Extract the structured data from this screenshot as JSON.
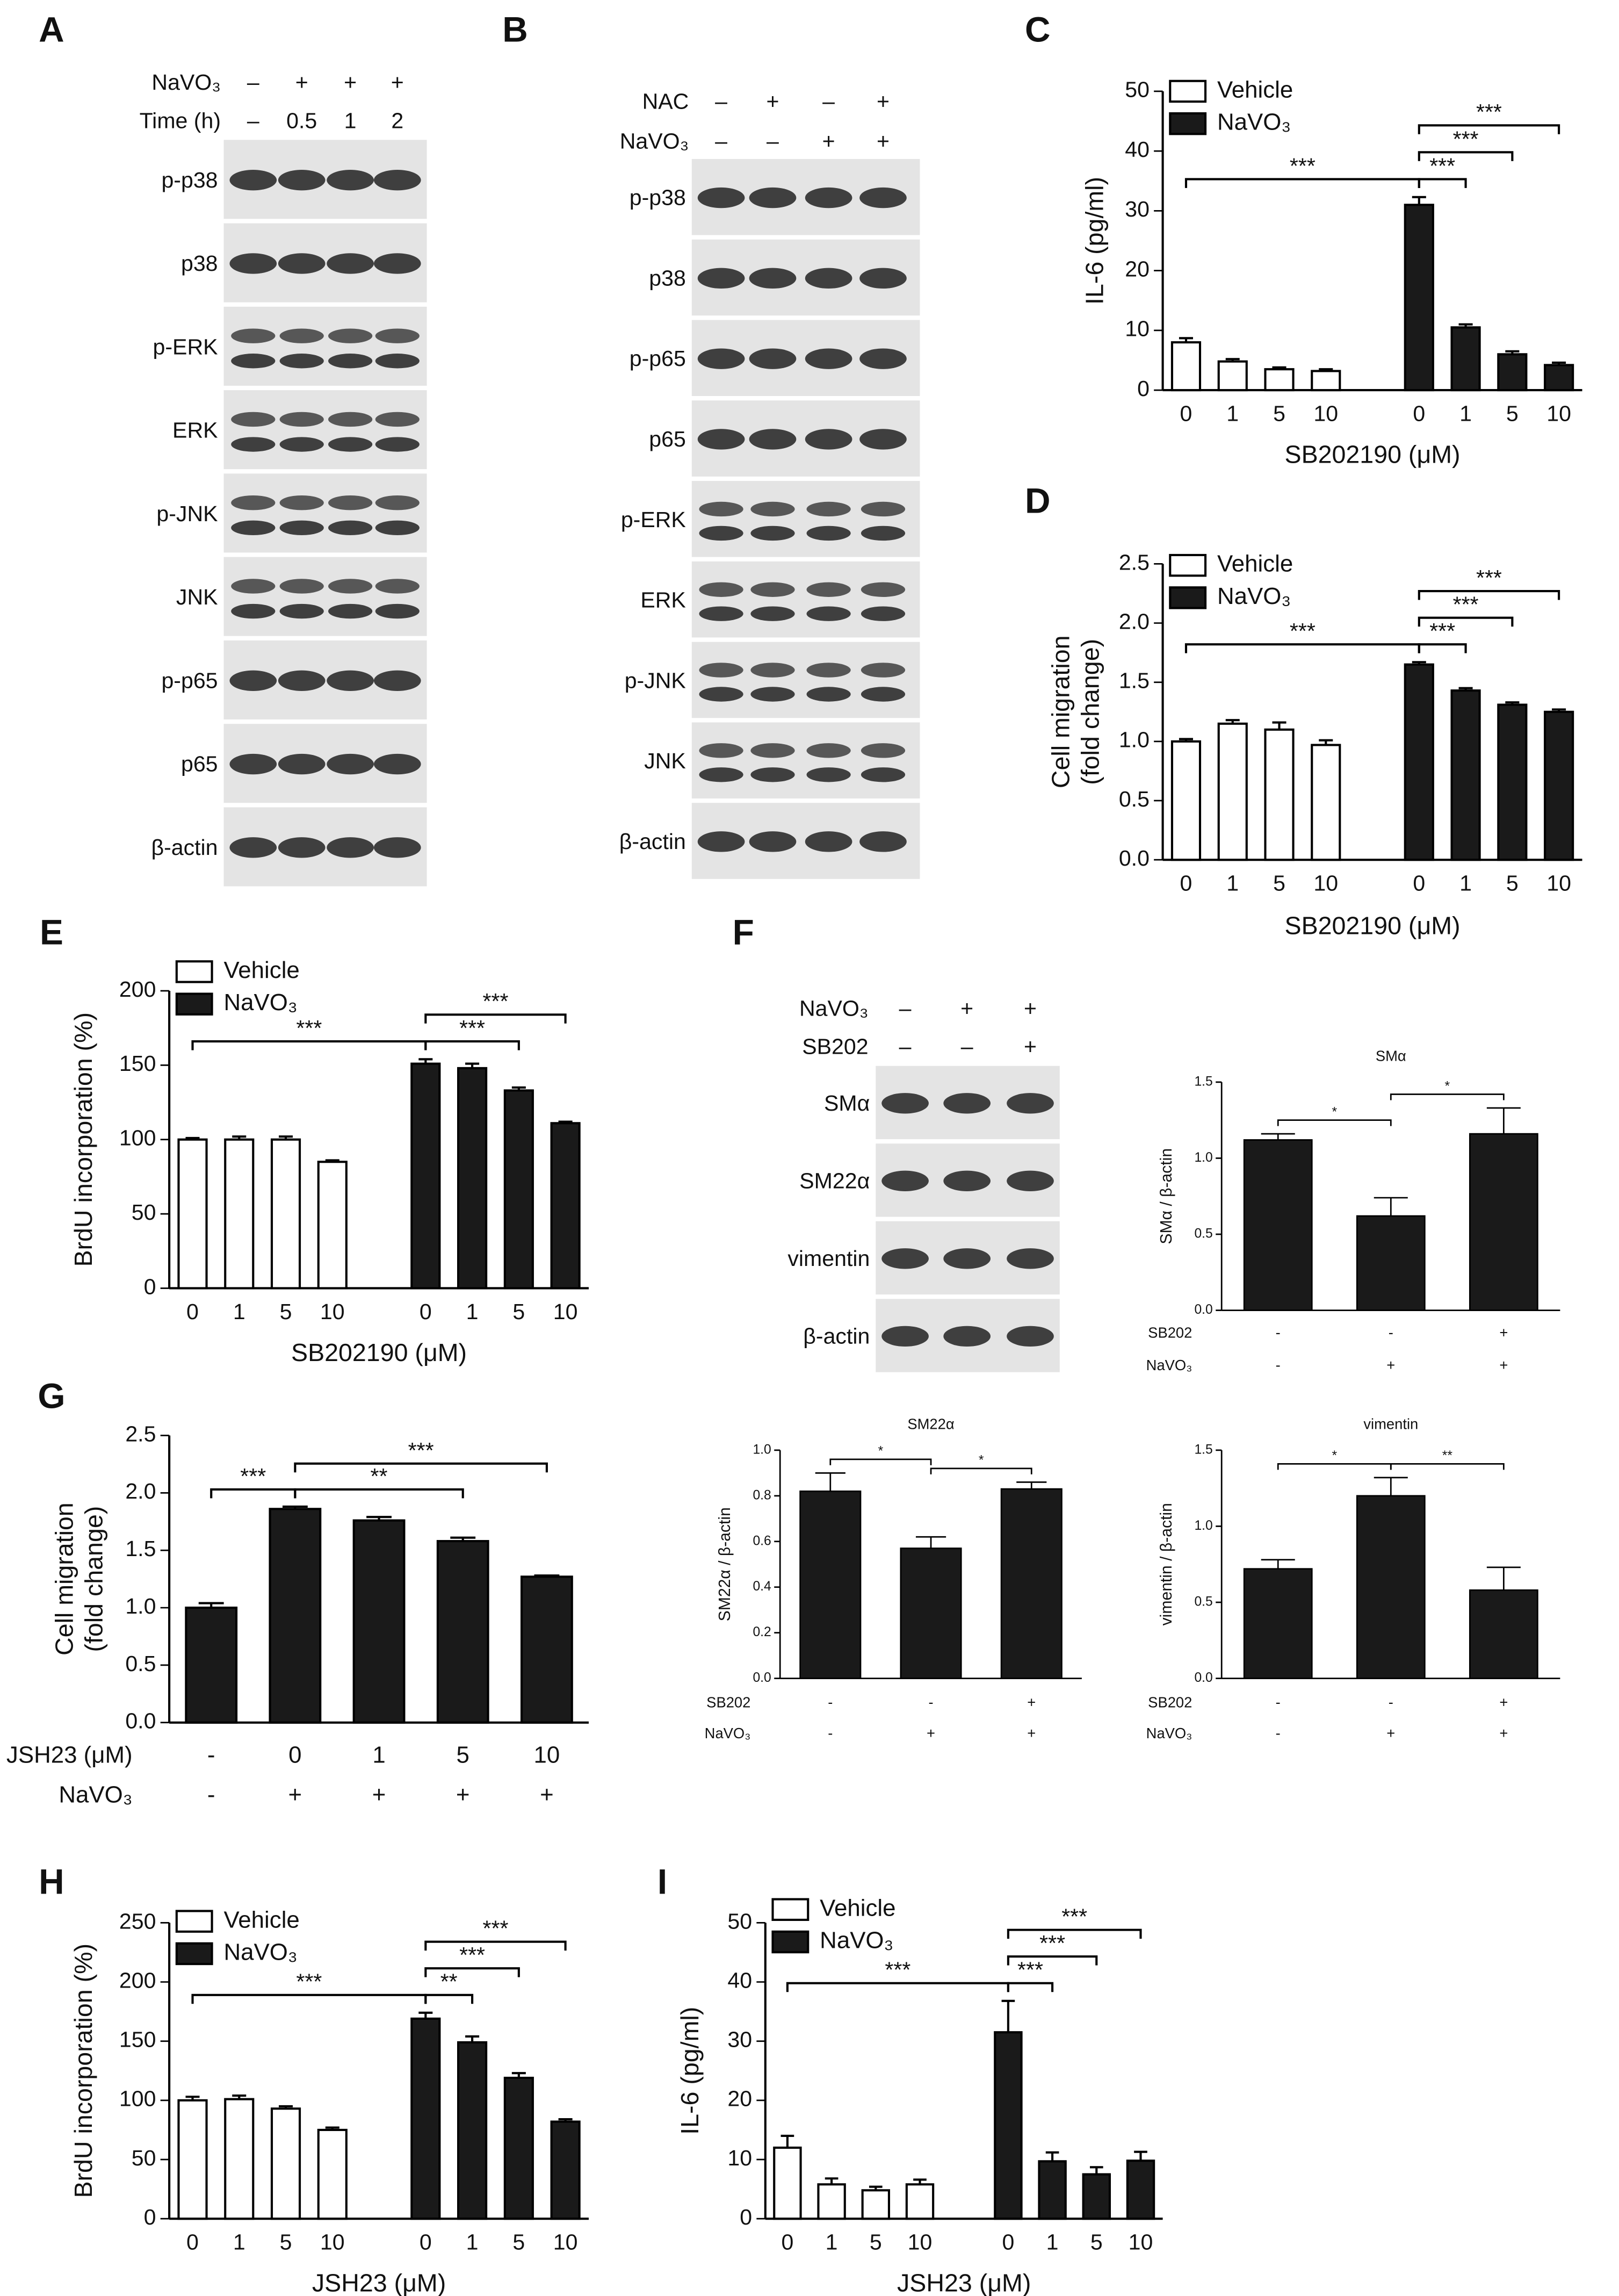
{
  "blots": [
    {
      "label": "A",
      "conditions": [
        {
          "name": "NaVO₃",
          "values": [
            "–",
            "+",
            "+",
            "+"
          ]
        },
        {
          "name": "Time (h)",
          "values": [
            "–",
            "0.5",
            "1",
            "2"
          ]
        }
      ],
      "bands": [
        "p-p38",
        "p38",
        "p-ERK",
        "ERK",
        "p-JNK",
        "JNK",
        "p-p65",
        "p65",
        "β-actin"
      ]
    },
    {
      "label": "B",
      "conditions": [
        {
          "name": "NAC",
          "values": [
            "–",
            "+",
            "–",
            "+"
          ]
        },
        {
          "name": "NaVO₃",
          "values": [
            "–",
            "–",
            "+",
            "+"
          ]
        }
      ],
      "bands": [
        "p-p38",
        "p38",
        "p-p65",
        "p65",
        "p-ERK",
        "ERK",
        "p-JNK",
        "JNK",
        "β-actin"
      ]
    },
    {
      "label": "F",
      "conditions": [
        {
          "name": "NaVO₃",
          "values": [
            "–",
            "+",
            "+"
          ]
        },
        {
          "name": "SB202",
          "values": [
            "–",
            "–",
            "+"
          ]
        }
      ],
      "bands": [
        "SMα",
        "SM22α",
        "vimentin",
        "β-actin"
      ]
    }
  ],
  "chart_data": [
    {
      "label": "C",
      "type": "bar",
      "ylabel": "IL-6 (pg/ml)",
      "xlabel": "SB202190 (μM)",
      "legend": "upper left",
      "categories": [
        "0",
        "1",
        "5",
        "10",
        "0",
        "1",
        "5",
        "10"
      ],
      "series": [
        {
          "name": "Vehicle",
          "color": "#ffffff",
          "values": [
            8,
            4.8,
            3.5,
            3.2,
            null,
            null,
            null,
            null
          ],
          "errors": [
            0.7,
            0.4,
            0.3,
            0.3,
            null,
            null,
            null,
            null
          ]
        },
        {
          "name": "NaVO₃",
          "color": "#1a1a1a",
          "values": [
            null,
            null,
            null,
            null,
            31,
            10.5,
            6,
            4.2
          ],
          "errors": [
            null,
            null,
            null,
            null,
            1.3,
            0.5,
            0.5,
            0.4
          ]
        }
      ],
      "ylim": [
        0,
        50
      ],
      "yticks": [
        0,
        10,
        20,
        30,
        40,
        50
      ],
      "annotations": [
        {
          "text": "***",
          "x1": 0,
          "x2": 4
        },
        {
          "text": "***",
          "x1": 4,
          "x2": 5
        },
        {
          "text": "***",
          "x1": 4,
          "x2": 6
        },
        {
          "text": "***",
          "x1": 4,
          "x2": 7
        }
      ]
    },
    {
      "label": "D",
      "type": "bar",
      "ylabel": [
        "Cell migration",
        "(fold change)"
      ],
      "xlabel": "SB202190 (μM)",
      "legend": "upper left",
      "categories": [
        "0",
        "1",
        "5",
        "10",
        "0",
        "1",
        "5",
        "10"
      ],
      "series": [
        {
          "name": "Vehicle",
          "color": "#ffffff",
          "values": [
            1.0,
            1.15,
            1.1,
            0.97,
            null,
            null,
            null,
            null
          ],
          "errors": [
            0.02,
            0.03,
            0.06,
            0.04,
            null,
            null,
            null,
            null
          ]
        },
        {
          "name": "NaVO₃",
          "color": "#1a1a1a",
          "values": [
            null,
            null,
            null,
            null,
            1.65,
            1.43,
            1.31,
            1.25
          ],
          "errors": [
            null,
            null,
            null,
            null,
            0.02,
            0.02,
            0.02,
            0.02
          ]
        }
      ],
      "ylim": [
        0,
        2.5
      ],
      "yticks": [
        {
          "value": 0,
          "label": "0.0"
        },
        0.5,
        {
          "value": 1,
          "label": "1.0"
        },
        1.5,
        {
          "value": 2,
          "label": "2.0"
        },
        2.5
      ],
      "annotations": [
        {
          "text": "***",
          "x1": 0,
          "x2": 4
        },
        {
          "text": "***",
          "x1": 4,
          "x2": 5
        },
        {
          "text": "***",
          "x1": 4,
          "x2": 6
        },
        {
          "text": "***",
          "x1": 4,
          "x2": 7
        }
      ]
    },
    {
      "label": "E",
      "type": "bar",
      "ylabel": "BrdU incorporation (%)",
      "xlabel": "SB202190 (μM)",
      "legend": "upper left",
      "categories": [
        "0",
        "1",
        "5",
        "10",
        "0",
        "1",
        "5",
        "10"
      ],
      "series": [
        {
          "name": "Vehicle",
          "color": "#ffffff",
          "values": [
            100,
            100,
            100,
            85,
            null,
            null,
            null,
            null
          ],
          "errors": [
            1,
            2,
            2,
            1,
            null,
            null,
            null,
            null
          ]
        },
        {
          "name": "NaVO₃",
          "color": "#1a1a1a",
          "values": [
            null,
            null,
            null,
            null,
            151,
            148,
            133,
            111
          ],
          "errors": [
            null,
            null,
            null,
            null,
            3,
            3,
            2,
            1
          ]
        }
      ],
      "ylim": [
        0,
        200
      ],
      "yticks": [
        0,
        50,
        100,
        150,
        200
      ],
      "annotations": [
        {
          "text": "***",
          "x1": 0,
          "x2": 4
        },
        {
          "text": "***",
          "x1": 4,
          "x2": 6
        },
        {
          "text": "***",
          "x1": 4,
          "x2": 7
        }
      ]
    },
    {
      "type": "bar",
      "title": "SMα",
      "ylabel": "SMα / β-actin",
      "color": "#1a1a1a",
      "values": [
        1.12,
        0.62,
        1.16
      ],
      "errors": [
        0.04,
        0.12,
        0.17
      ],
      "conditions": [
        {
          "name": "SB202",
          "values": [
            "-",
            "-",
            "+"
          ]
        },
        {
          "name": "NaVO₃",
          "values": [
            "-",
            "+",
            "+"
          ]
        }
      ],
      "ylim": [
        0,
        1.5
      ],
      "yticks": [
        {
          "value": 0,
          "label": "0.0"
        },
        0.5,
        {
          "value": 1,
          "label": "1.0"
        },
        1.5
      ],
      "annotations": [
        {
          "text": "*",
          "x1": 0,
          "x2": 1
        },
        {
          "text": "*",
          "x1": 1,
          "x2": 2
        }
      ]
    },
    {
      "type": "bar",
      "title": "SM22α",
      "ylabel": "SM22α / β-actin",
      "color": "#1a1a1a",
      "values": [
        0.82,
        0.57,
        0.83
      ],
      "errors": [
        0.08,
        0.05,
        0.03
      ],
      "conditions": [
        {
          "name": "SB202",
          "values": [
            "-",
            "-",
            "+"
          ]
        },
        {
          "name": "NaVO₃",
          "values": [
            "-",
            "+",
            "+"
          ]
        }
      ],
      "ylim": [
        0,
        1
      ],
      "yticks": [
        {
          "value": 0,
          "label": "0.0"
        },
        0.2,
        0.4,
        0.6,
        0.8,
        {
          "value": 1,
          "label": "1.0"
        }
      ],
      "annotations": [
        {
          "text": "*",
          "x1": 0,
          "x2": 1
        },
        {
          "text": "*",
          "x1": 1,
          "x2": 2
        }
      ]
    },
    {
      "type": "bar",
      "title": "vimentin",
      "ylabel": "vimentin / β-actin",
      "color": "#1a1a1a",
      "values": [
        0.72,
        1.2,
        0.58
      ],
      "errors": [
        0.06,
        0.12,
        0.15
      ],
      "conditions": [
        {
          "name": "SB202",
          "values": [
            "-",
            "-",
            "+"
          ]
        },
        {
          "name": "NaVO₃",
          "values": [
            "-",
            "+",
            "+"
          ]
        }
      ],
      "ylim": [
        0,
        1.5
      ],
      "yticks": [
        {
          "value": 0,
          "label": "0.0"
        },
        0.5,
        {
          "value": 1,
          "label": "1.0"
        },
        1.5
      ],
      "annotations": [
        {
          "text": "*",
          "x1": 0,
          "x2": 1
        },
        {
          "text": "**",
          "x1": 1,
          "x2": 2
        }
      ]
    },
    {
      "label": "G",
      "type": "bar",
      "ylabel": [
        "Cell migration",
        "(fold change)"
      ],
      "color": "#1a1a1a",
      "values": [
        1.0,
        1.86,
        1.76,
        1.58,
        1.27
      ],
      "errors": [
        0.04,
        0.02,
        0.03,
        0.03,
        0.01
      ],
      "conditions": [
        {
          "name": "JSH23 (μM)",
          "values": [
            "-",
            "0",
            "1",
            "5",
            "10"
          ]
        },
        {
          "name": "NaVO₃",
          "values": [
            "-",
            "+",
            "+",
            "+",
            "+"
          ]
        }
      ],
      "ylim": [
        0,
        2.5
      ],
      "yticks": [
        {
          "value": 0,
          "label": "0.0"
        },
        0.5,
        {
          "value": 1,
          "label": "1.0"
        },
        1.5,
        {
          "value": 2,
          "label": "2.0"
        },
        2.5
      ],
      "annotations": [
        {
          "text": "***",
          "x1": 0,
          "x2": 1
        },
        {
          "text": "**",
          "x1": 1,
          "x2": 3
        },
        {
          "text": "***",
          "x1": 1,
          "x2": 4
        }
      ]
    },
    {
      "label": "H",
      "type": "bar",
      "ylabel": "BrdU incorporation (%)",
      "xlabel": "JSH23 (μM)",
      "legend": "upper left",
      "categories": [
        "0",
        "1",
        "5",
        "10",
        "0",
        "1",
        "5",
        "10"
      ],
      "series": [
        {
          "name": "Vehicle",
          "color": "#ffffff",
          "values": [
            100,
            101,
            93,
            75,
            null,
            null,
            null,
            null
          ],
          "errors": [
            3,
            3,
            2,
            2,
            null,
            null,
            null,
            null
          ]
        },
        {
          "name": "NaVO₃",
          "color": "#1a1a1a",
          "values": [
            null,
            null,
            null,
            null,
            169,
            149,
            119,
            82
          ],
          "errors": [
            null,
            null,
            null,
            null,
            5,
            5,
            4,
            2
          ]
        }
      ],
      "ylim": [
        0,
        250
      ],
      "yticks": [
        0,
        50,
        100,
        150,
        200,
        250
      ],
      "annotations": [
        {
          "text": "***",
          "x1": 0,
          "x2": 4
        },
        {
          "text": "**",
          "x1": 4,
          "x2": 5
        },
        {
          "text": "***",
          "x1": 4,
          "x2": 6
        },
        {
          "text": "***",
          "x1": 4,
          "x2": 7
        }
      ]
    },
    {
      "label": "I",
      "type": "bar",
      "ylabel": "IL-6 (pg/ml)",
      "xlabel": "JSH23 (μM)",
      "legend": "upper left",
      "categories": [
        "0",
        "1",
        "5",
        "10",
        "0",
        "1",
        "5",
        "10"
      ],
      "series": [
        {
          "name": "Vehicle",
          "color": "#ffffff",
          "values": [
            12,
            5.8,
            4.8,
            5.8,
            null,
            null,
            null,
            null
          ],
          "errors": [
            2,
            1,
            0.6,
            0.8,
            null,
            null,
            null,
            null
          ]
        },
        {
          "name": "NaVO₃",
          "color": "#1a1a1a",
          "values": [
            null,
            null,
            null,
            null,
            31.5,
            9.7,
            7.5,
            9.8
          ],
          "errors": [
            null,
            null,
            null,
            null,
            5.3,
            1.5,
            1.2,
            1.5
          ]
        }
      ],
      "ylim": [
        0,
        50
      ],
      "yticks": [
        0,
        10,
        20,
        30,
        40,
        50
      ],
      "annotations": [
        {
          "text": "***",
          "x1": 0,
          "x2": 4
        },
        {
          "text": "***",
          "x1": 4,
          "x2": 5
        },
        {
          "text": "***",
          "x1": 4,
          "x2": 6
        },
        {
          "text": "***",
          "x1": 4,
          "x2": 7
        }
      ]
    }
  ]
}
